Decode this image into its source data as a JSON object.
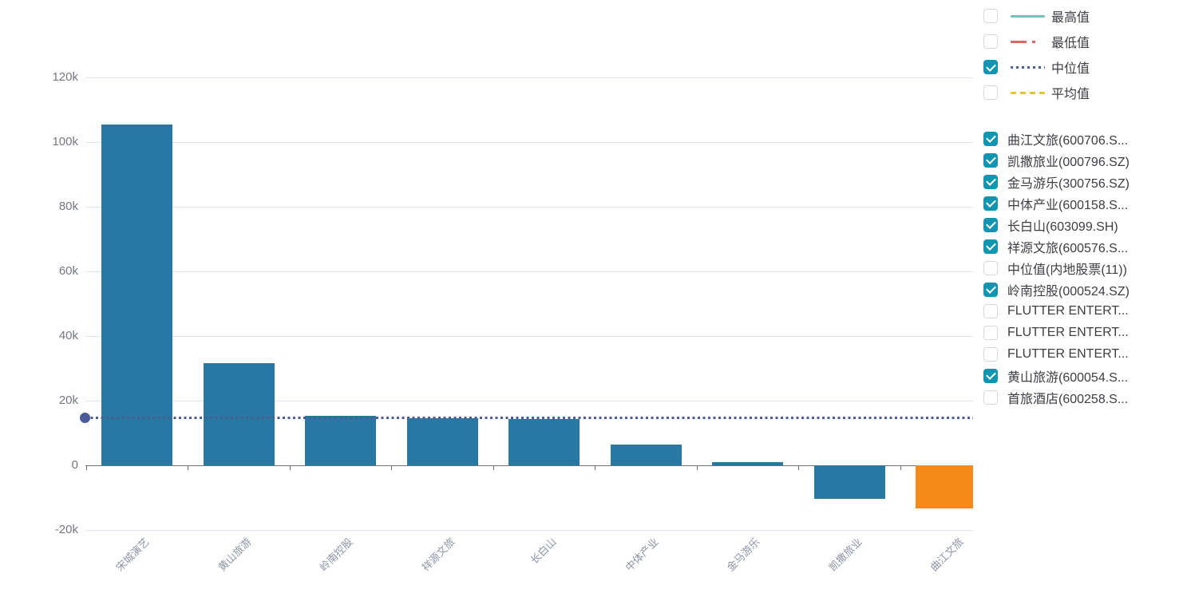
{
  "chart_data": {
    "type": "bar",
    "title": "",
    "xlabel": "",
    "ylabel": "",
    "categories": [
      "宋城演艺",
      "黄山旅游",
      "岭南控股",
      "祥源文旅",
      "长白山",
      "中体产业",
      "金马游乐",
      "凯撒旅业",
      "曲江文旅"
    ],
    "values": [
      105500,
      31600,
      15300,
      14500,
      14400,
      6400,
      1000,
      -10300,
      -13300
    ],
    "bar_colors": [
      "#2878a4",
      "#2878a4",
      "#2878a4",
      "#2878a4",
      "#2878a4",
      "#2878a4",
      "#2878a4",
      "#2878a4",
      "#f58a19"
    ],
    "ylim": [
      -20000,
      130000
    ],
    "grid": true,
    "legend_position": "right",
    "y_ticks": [
      {
        "label": "120k",
        "value": 120000
      },
      {
        "label": "100k",
        "value": 100000
      },
      {
        "label": "80k",
        "value": 80000
      },
      {
        "label": "60k",
        "value": 60000
      },
      {
        "label": "40k",
        "value": 40000
      },
      {
        "label": "20k",
        "value": 20000
      },
      {
        "label": "0",
        "value": 0
      },
      {
        "label": "-20k",
        "value": -20000
      }
    ],
    "median_line": {
      "label": "中位值",
      "value": 14600,
      "color": "#4a5b96"
    }
  },
  "legend_stats": {
    "items": [
      {
        "label": "最高值",
        "checked": false,
        "color": "#73c2bd",
        "line_style": "solid"
      },
      {
        "label": "最低值",
        "checked": false,
        "color": "#e16567",
        "line_style": "dashdot"
      },
      {
        "label": "中位值",
        "checked": true,
        "color": "#4a5b96",
        "line_style": "dotted"
      },
      {
        "label": "平均值",
        "checked": false,
        "color": "#e6c439",
        "line_style": "dashed"
      }
    ]
  },
  "legend_series": {
    "items": [
      {
        "label": "曲江文旅(600706.S...",
        "checked": true
      },
      {
        "label": "凯撒旅业(000796.SZ)",
        "checked": true
      },
      {
        "label": "金马游乐(300756.SZ)",
        "checked": true
      },
      {
        "label": "中体产业(600158.S...",
        "checked": true
      },
      {
        "label": "长白山(603099.SH)",
        "checked": true
      },
      {
        "label": "祥源文旅(600576.S...",
        "checked": true
      },
      {
        "label": "中位值(内地股票(11))",
        "checked": false
      },
      {
        "label": "岭南控股(000524.SZ)",
        "checked": true
      },
      {
        "label": "FLUTTER ENTERT...",
        "checked": false
      },
      {
        "label": "FLUTTER ENTERT...",
        "checked": false
      },
      {
        "label": "FLUTTER ENTERT...",
        "checked": false
      },
      {
        "label": "黄山旅游(600054.S...",
        "checked": true
      },
      {
        "label": "首旅酒店(600258.S...",
        "checked": false
      }
    ]
  },
  "colors": {
    "bar_default": "#2878a4",
    "bar_highlight": "#f58a19",
    "median": "#4a5b96",
    "max_line": "#73c2bd",
    "min_line": "#e16567",
    "avg_line": "#e6c439",
    "checkbox_checked": "#1295b0",
    "gridline": "#e0e5f0",
    "axis": "#6e7079"
  }
}
